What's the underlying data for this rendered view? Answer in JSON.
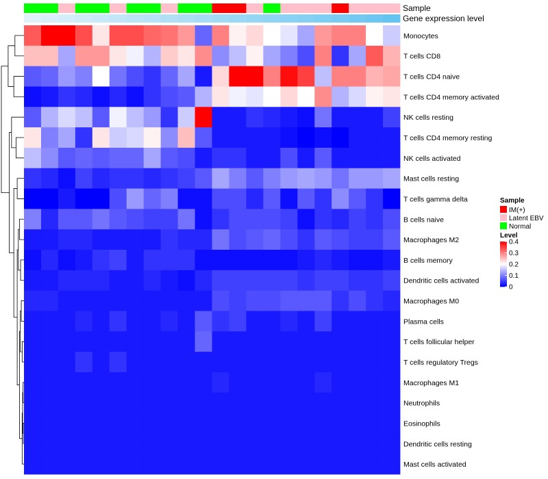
{
  "chart_data": {
    "type": "heatmap",
    "rows": [
      "Monocytes",
      "T cells CD8",
      "T cells CD4 naive",
      "T cells CD4 memory activated",
      "NK cells resting",
      "T cells CD4 memory resting",
      "NK cells activated",
      "Mast cells resting",
      "T cells gamma delta",
      "B cells naive",
      "Macrophages M2",
      "B cells memory",
      "Dendritic cells activated",
      "Macrophages M0",
      "Plasma cells",
      "T cells follicular helper",
      "T cells regulatory  Tregs",
      "Macrophages M1",
      "Neutrophils",
      "Eosinophils",
      "Dendritic cells resting",
      "Mast cells activated"
    ],
    "values": [
      [
        0.33,
        0.4,
        0.4,
        0.34,
        0.22,
        0.34,
        0.34,
        0.32,
        0.31,
        0.28,
        0.08,
        0.3,
        0.21,
        0.23,
        0.2,
        0.18,
        0.13,
        0.28,
        0.3,
        0.3,
        0.2,
        0.16
      ],
      [
        0.25,
        0.25,
        0.13,
        0.28,
        0.28,
        0.22,
        0.19,
        0.14,
        0.24,
        0.22,
        0.29,
        0.11,
        0.15,
        0.21,
        0.13,
        0.1,
        0.06,
        0.3,
        0.04,
        0.13,
        0.33,
        0.26
      ],
      [
        0.07,
        0.08,
        0.12,
        0.1,
        0.2,
        0.09,
        0.06,
        0.04,
        0.08,
        0.13,
        0.02,
        0.23,
        0.4,
        0.4,
        0.3,
        0.39,
        0.35,
        0.15,
        0.3,
        0.3,
        0.26,
        0.27
      ],
      [
        0.01,
        0.02,
        0.04,
        0.03,
        0.01,
        0.03,
        0.01,
        0.04,
        0.06,
        0.07,
        0.14,
        0.22,
        0.19,
        0.18,
        0.2,
        0.23,
        0.2,
        0.29,
        0.14,
        0.17,
        0.21,
        0.22
      ],
      [
        0.07,
        0.14,
        0.17,
        0.15,
        0.07,
        0.19,
        0.15,
        0.12,
        0.04,
        0.16,
        0.4,
        0.02,
        0.02,
        0.04,
        0.03,
        0.02,
        0.01,
        0.09,
        0.02,
        0.02,
        0.02,
        0.05
      ],
      [
        0.22,
        0.1,
        0.13,
        0.04,
        0.22,
        0.16,
        0.17,
        0.21,
        0.11,
        0.25,
        0.07,
        0.02,
        0.02,
        0.02,
        0.02,
        0.01,
        0.0,
        0.01,
        0.0,
        0.02,
        0.02,
        0.02
      ],
      [
        0.15,
        0.11,
        0.07,
        0.08,
        0.07,
        0.08,
        0.08,
        0.13,
        0.07,
        0.06,
        0.02,
        0.04,
        0.04,
        0.02,
        0.02,
        0.06,
        0.02,
        0.07,
        0.02,
        0.02,
        0.02,
        0.02
      ],
      [
        0.04,
        0.03,
        0.01,
        0.05,
        0.03,
        0.04,
        0.04,
        0.03,
        0.04,
        0.05,
        0.07,
        0.13,
        0.1,
        0.07,
        0.1,
        0.12,
        0.13,
        0.12,
        0.09,
        0.12,
        0.12,
        0.13
      ],
      [
        0.0,
        0.0,
        0.02,
        0.0,
        0.0,
        0.06,
        0.12,
        0.08,
        0.1,
        0.01,
        0.01,
        0.06,
        0.06,
        0.03,
        0.07,
        0.01,
        0.07,
        0.04,
        0.11,
        0.07,
        0.04,
        0.0
      ],
      [
        0.1,
        0.03,
        0.07,
        0.07,
        0.09,
        0.07,
        0.06,
        0.05,
        0.05,
        0.09,
        0.01,
        0.04,
        0.06,
        0.06,
        0.06,
        0.05,
        0.01,
        0.04,
        0.03,
        0.05,
        0.04,
        0.06
      ],
      [
        0.02,
        0.02,
        0.03,
        0.03,
        0.02,
        0.02,
        0.02,
        0.02,
        0.04,
        0.03,
        0.03,
        0.09,
        0.06,
        0.07,
        0.08,
        0.06,
        0.04,
        0.07,
        0.06,
        0.05,
        0.05,
        0.07
      ],
      [
        0.01,
        0.03,
        0.01,
        0.02,
        0.04,
        0.05,
        0.02,
        0.04,
        0.04,
        0.04,
        0.01,
        0.01,
        0.01,
        0.01,
        0.01,
        0.01,
        0.02,
        0.03,
        0.02,
        0.01,
        0.01,
        0.02
      ],
      [
        0.02,
        0.02,
        0.03,
        0.03,
        0.03,
        0.02,
        0.02,
        0.03,
        0.02,
        0.01,
        0.03,
        0.05,
        0.05,
        0.05,
        0.05,
        0.05,
        0.04,
        0.05,
        0.05,
        0.04,
        0.04,
        0.05
      ],
      [
        0.03,
        0.03,
        0.02,
        0.02,
        0.02,
        0.02,
        0.02,
        0.02,
        0.02,
        0.02,
        0.02,
        0.06,
        0.05,
        0.06,
        0.06,
        0.07,
        0.07,
        0.07,
        0.04,
        0.06,
        0.04,
        0.03
      ],
      [
        0.02,
        0.02,
        0.02,
        0.03,
        0.02,
        0.04,
        0.02,
        0.02,
        0.03,
        0.02,
        0.07,
        0.04,
        0.05,
        0.02,
        0.02,
        0.03,
        0.02,
        0.05,
        0.02,
        0.02,
        0.02,
        0.02
      ],
      [
        0.02,
        0.02,
        0.02,
        0.02,
        0.02,
        0.02,
        0.02,
        0.02,
        0.02,
        0.02,
        0.08,
        0.02,
        0.02,
        0.02,
        0.02,
        0.02,
        0.02,
        0.02,
        0.02,
        0.02,
        0.02,
        0.02
      ],
      [
        0.02,
        0.02,
        0.02,
        0.04,
        0.02,
        0.04,
        0.02,
        0.02,
        0.02,
        0.02,
        0.02,
        0.02,
        0.02,
        0.02,
        0.02,
        0.02,
        0.02,
        0.02,
        0.02,
        0.02,
        0.02,
        0.02
      ],
      [
        0.02,
        0.02,
        0.02,
        0.02,
        0.02,
        0.02,
        0.02,
        0.02,
        0.02,
        0.02,
        0.02,
        0.03,
        0.02,
        0.02,
        0.02,
        0.02,
        0.02,
        0.03,
        0.02,
        0.02,
        0.02,
        0.02
      ],
      [
        0.02,
        0.02,
        0.02,
        0.02,
        0.02,
        0.02,
        0.02,
        0.02,
        0.02,
        0.02,
        0.02,
        0.02,
        0.02,
        0.02,
        0.02,
        0.02,
        0.02,
        0.02,
        0.02,
        0.02,
        0.02,
        0.02
      ],
      [
        0.02,
        0.02,
        0.02,
        0.02,
        0.02,
        0.02,
        0.02,
        0.02,
        0.02,
        0.02,
        0.02,
        0.02,
        0.02,
        0.02,
        0.02,
        0.02,
        0.02,
        0.02,
        0.02,
        0.02,
        0.02,
        0.02
      ],
      [
        0.02,
        0.02,
        0.02,
        0.02,
        0.02,
        0.02,
        0.02,
        0.02,
        0.02,
        0.02,
        0.02,
        0.02,
        0.02,
        0.02,
        0.02,
        0.02,
        0.02,
        0.02,
        0.02,
        0.02,
        0.02,
        0.02
      ],
      [
        0.02,
        0.02,
        0.02,
        0.02,
        0.02,
        0.02,
        0.02,
        0.02,
        0.02,
        0.02,
        0.02,
        0.02,
        0.02,
        0.02,
        0.02,
        0.02,
        0.02,
        0.02,
        0.02,
        0.02,
        0.02,
        0.02
      ]
    ],
    "annotations": [
      {
        "label": "Sample",
        "values": [
          "Normal",
          "Normal",
          "Latent EBV",
          "Normal",
          "Normal",
          "Latent EBV",
          "Normal",
          "Normal",
          "Latent EBV",
          "Normal",
          "Normal",
          "IM(+)",
          "IM(+)",
          "Latent EBV",
          "Normal",
          "Latent EBV",
          "Latent EBV",
          "Latent EBV",
          "IM(+)",
          "Latent EBV",
          "Latent EBV",
          "Latent EBV"
        ]
      },
      {
        "label": "Gene expression level",
        "values": [
          0.05,
          0.1,
          0.14,
          0.18,
          0.22,
          0.26,
          0.3,
          0.34,
          0.38,
          0.42,
          0.46,
          0.5,
          0.54,
          0.58,
          0.62,
          0.66,
          0.7,
          0.74,
          0.78,
          0.82,
          0.88,
          0.94
        ]
      }
    ],
    "legend": {
      "sample": {
        "title": "Sample",
        "entries": [
          {
            "label": "IM(+)",
            "color": "#FF0000"
          },
          {
            "label": "Latent EBV",
            "color": "#FFC0CB"
          },
          {
            "label": "Normal",
            "color": "#00FF00"
          }
        ]
      },
      "level": {
        "title": "Level",
        "ticks": [
          0,
          0.1,
          0.2,
          0.3,
          0.4
        ],
        "tick_labels": [
          "0",
          "0.1",
          "0.2",
          "0.3",
          "0.4"
        ]
      }
    },
    "color_scale": {
      "low": "#0000FF",
      "mid": "#FFFFFF",
      "high": "#FF0000",
      "min": 0,
      "mid_value": 0.2,
      "max": 0.4
    },
    "annotation_gradient": [
      "#E6F4FA",
      "#5BC0F0"
    ],
    "legend_placement": "right"
  }
}
